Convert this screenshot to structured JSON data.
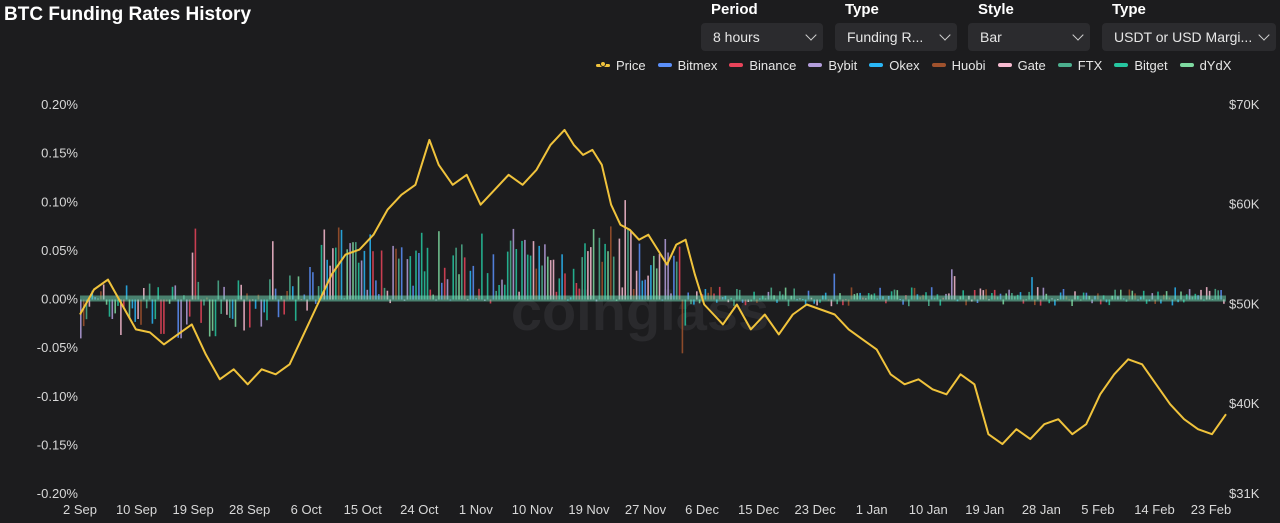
{
  "header": {
    "title": "BTC Funding Rates History"
  },
  "controls": [
    {
      "label": "Period",
      "value": "8 hours"
    },
    {
      "label": "Type",
      "value": "Funding R..."
    },
    {
      "label": "Style",
      "value": "Bar"
    },
    {
      "label": "Type",
      "value": "USDT or USD Margi..."
    }
  ],
  "watermark": "coinglass",
  "chart_data": {
    "type": "bar",
    "title": "BTC Funding Rates History",
    "x_ticks": [
      "2 Sep",
      "10 Sep",
      "19 Sep",
      "28 Sep",
      "6 Oct",
      "15 Oct",
      "24 Oct",
      "1 Nov",
      "10 Nov",
      "19 Nov",
      "27 Nov",
      "6 Dec",
      "15 Dec",
      "23 Dec",
      "1 Jan",
      "10 Jan",
      "19 Jan",
      "28 Jan",
      "5 Feb",
      "14 Feb",
      "23 Feb"
    ],
    "y_left_ticks": [
      "0.20%",
      "0.15%",
      "0.10%",
      "0.05%",
      "0.00%",
      "-0.05%",
      "-0.10%",
      "-0.15%",
      "-0.20%"
    ],
    "y_left_range": [
      -0.2,
      0.2
    ],
    "y_right_ticks": [
      "$70K",
      "$60K",
      "$50K",
      "$40K",
      "$31K"
    ],
    "y_right_range": [
      31000,
      70000
    ],
    "legend_position": "top-right",
    "series": [
      {
        "name": "Price",
        "color": "#f0c33c",
        "kind": "line"
      },
      {
        "name": "Bitmex",
        "color": "#5b8ff9",
        "kind": "bar"
      },
      {
        "name": "Binance",
        "color": "#e8445a",
        "kind": "bar"
      },
      {
        "name": "Bybit",
        "color": "#b39ddb",
        "kind": "bar"
      },
      {
        "name": "Okex",
        "color": "#29b6f6",
        "kind": "bar"
      },
      {
        "name": "Huobi",
        "color": "#a0522d",
        "kind": "bar"
      },
      {
        "name": "Gate",
        "color": "#f8bbd0",
        "kind": "bar"
      },
      {
        "name": "FTX",
        "color": "#4caf8e",
        "kind": "bar"
      },
      {
        "name": "Bitget",
        "color": "#26c6a0",
        "kind": "bar"
      },
      {
        "name": "dYdX",
        "color": "#7ed9a0",
        "kind": "bar"
      }
    ],
    "price_points": [
      [
        0,
        49000
      ],
      [
        3,
        51500
      ],
      [
        6,
        52500
      ],
      [
        9,
        50000
      ],
      [
        12,
        47500
      ],
      [
        15,
        47200
      ],
      [
        18,
        46000
      ],
      [
        21,
        47000
      ],
      [
        24,
        48000
      ],
      [
        27,
        45000
      ],
      [
        30,
        42500
      ],
      [
        33,
        43500
      ],
      [
        36,
        42000
      ],
      [
        39,
        43500
      ],
      [
        42,
        43000
      ],
      [
        45,
        44000
      ],
      [
        48,
        47000
      ],
      [
        51,
        50000
      ],
      [
        54,
        53000
      ],
      [
        57,
        55000
      ],
      [
        60,
        55500
      ],
      [
        63,
        57000
      ],
      [
        66,
        59500
      ],
      [
        69,
        61000
      ],
      [
        72,
        62000
      ],
      [
        75,
        66500
      ],
      [
        77,
        64000
      ],
      [
        80,
        62000
      ],
      [
        83,
        63000
      ],
      [
        86,
        60000
      ],
      [
        89,
        61500
      ],
      [
        92,
        63000
      ],
      [
        95,
        62000
      ],
      [
        98,
        63500
      ],
      [
        101,
        66000
      ],
      [
        104,
        67500
      ],
      [
        106,
        66000
      ],
      [
        108,
        65000
      ],
      [
        110,
        65500
      ],
      [
        112,
        64000
      ],
      [
        114,
        60000
      ],
      [
        116,
        58000
      ],
      [
        118,
        57500
      ],
      [
        120,
        56500
      ],
      [
        122,
        57000
      ],
      [
        124,
        55500
      ],
      [
        126,
        54000
      ],
      [
        128,
        56000
      ],
      [
        130,
        56500
      ],
      [
        132,
        53000
      ],
      [
        134,
        50000
      ],
      [
        136,
        49000
      ],
      [
        138,
        48000
      ],
      [
        141,
        50000
      ],
      [
        144,
        47500
      ],
      [
        147,
        49000
      ],
      [
        150,
        47000
      ],
      [
        153,
        49000
      ],
      [
        156,
        50000
      ],
      [
        159,
        49500
      ],
      [
        162,
        49000
      ],
      [
        165,
        47500
      ],
      [
        168,
        46500
      ],
      [
        171,
        45500
      ],
      [
        174,
        43000
      ],
      [
        177,
        42000
      ],
      [
        180,
        42500
      ],
      [
        183,
        41500
      ],
      [
        186,
        41000
      ],
      [
        189,
        43000
      ],
      [
        192,
        42000
      ],
      [
        195,
        37000
      ],
      [
        198,
        36000
      ],
      [
        201,
        37500
      ],
      [
        204,
        36500
      ],
      [
        207,
        38000
      ],
      [
        210,
        38500
      ],
      [
        213,
        37000
      ],
      [
        216,
        38000
      ],
      [
        219,
        41000
      ],
      [
        222,
        43000
      ],
      [
        225,
        44500
      ],
      [
        228,
        44000
      ],
      [
        231,
        42000
      ],
      [
        234,
        40000
      ],
      [
        237,
        38500
      ],
      [
        240,
        37500
      ],
      [
        243,
        37000
      ],
      [
        246,
        39000
      ]
    ],
    "x_max": 246,
    "note_price_points": ""
  }
}
